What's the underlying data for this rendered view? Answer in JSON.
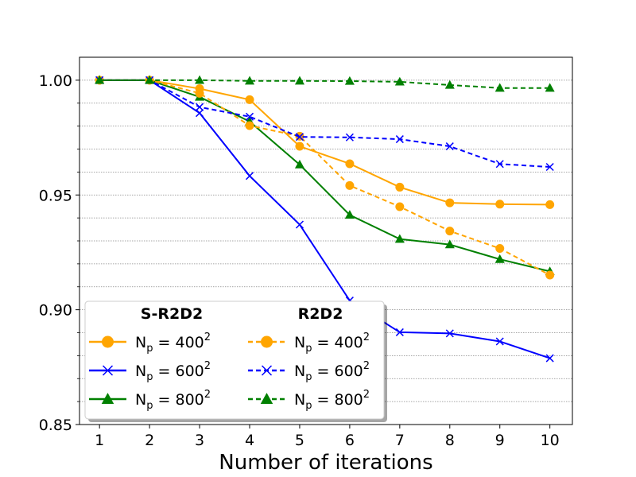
{
  "chart_data": {
    "type": "line",
    "title": "",
    "xlabel": "Number of iterations",
    "ylabel": "",
    "x": [
      1,
      2,
      3,
      4,
      5,
      6,
      7,
      8,
      9,
      10
    ],
    "xticks": [
      "1",
      "2",
      "3",
      "4",
      "5",
      "6",
      "7",
      "8",
      "9",
      "10"
    ],
    "yticks": [
      "0.85",
      "0.90",
      "0.95",
      "1.00"
    ],
    "ylim": [
      0.85,
      1.01
    ],
    "xlim": [
      0.6,
      10.45
    ],
    "grid": "horizontal dotted",
    "legend": {
      "placement": "lower-left",
      "group_titles": [
        "S-R2D2",
        "R2D2"
      ],
      "entry_prefix": "N",
      "entry_subscript": "p",
      "entry_sup": "2"
    },
    "series": [
      {
        "name": "S-R2D2 Np = 400^2",
        "group": "S-R2D2",
        "size": "400",
        "color": "#ffa500",
        "dash": "solid",
        "marker": "circle",
        "values": [
          1.0,
          1.0,
          0.9963,
          0.9915,
          0.9712,
          0.9636,
          0.9534,
          0.9466,
          0.946,
          0.9458
        ]
      },
      {
        "name": "S-R2D2 Np = 600^2",
        "group": "S-R2D2",
        "size": "600",
        "color": "#0000ff",
        "dash": "solid",
        "marker": "x",
        "values": [
          1.0,
          1.0,
          0.9857,
          0.9583,
          0.9371,
          0.904,
          0.8902,
          0.8897,
          0.8862,
          0.8789
        ]
      },
      {
        "name": "S-R2D2 Np = 800^2",
        "group": "S-R2D2",
        "size": "800",
        "color": "#008000",
        "dash": "solid",
        "marker": "triangle",
        "values": [
          1.0,
          1.0,
          0.9927,
          0.982,
          0.9632,
          0.9413,
          0.9308,
          0.9284,
          0.922,
          0.9167
        ]
      },
      {
        "name": "R2D2 Np = 400^2",
        "group": "R2D2",
        "size": "400",
        "color": "#ffa500",
        "dash": "dashed",
        "marker": "circle",
        "values": [
          1.0,
          1.0,
          0.9943,
          0.9802,
          0.9756,
          0.9541,
          0.9449,
          0.9343,
          0.9267,
          0.9151
        ]
      },
      {
        "name": "R2D2 Np = 600^2",
        "group": "R2D2",
        "size": "600",
        "color": "#0000ff",
        "dash": "dashed",
        "marker": "x",
        "values": [
          1.0,
          1.0,
          0.9883,
          0.9841,
          0.9753,
          0.9751,
          0.9743,
          0.9712,
          0.9635,
          0.9622
        ]
      },
      {
        "name": "R2D2 Np = 800^2",
        "group": "R2D2",
        "size": "800",
        "color": "#008000",
        "dash": "dashed",
        "marker": "triangle",
        "values": [
          1.0,
          1.0,
          1.0,
          0.9997,
          0.9997,
          0.9996,
          0.9993,
          0.9979,
          0.9966,
          0.9966
        ]
      }
    ]
  }
}
